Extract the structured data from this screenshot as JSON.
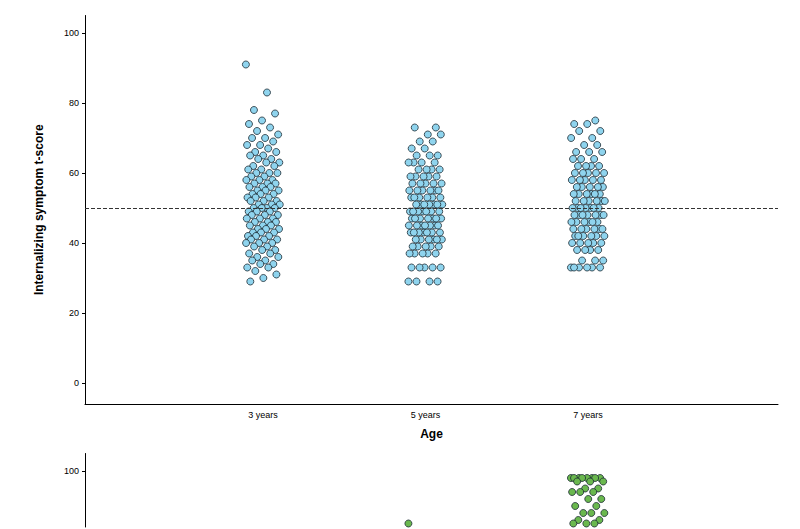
{
  "chart_data": [
    {
      "type": "scatter",
      "x_label": "Age",
      "y_label": "Internalizing symptom t-score",
      "categories": [
        "3 years",
        "5 years",
        "7 years"
      ],
      "values": [
        [
          91,
          83,
          78,
          77,
          75,
          74,
          73,
          72,
          71,
          70,
          70,
          69,
          68,
          68,
          67,
          66,
          66,
          65,
          65,
          64,
          64,
          63,
          63,
          62,
          62,
          61,
          61,
          60,
          60,
          60,
          59,
          59,
          58,
          58,
          58,
          57,
          57,
          57,
          56,
          56,
          56,
          55,
          55,
          55,
          54,
          54,
          54,
          53,
          53,
          53,
          52,
          52,
          52,
          51,
          51,
          51,
          50,
          50,
          50,
          50,
          49,
          49,
          49,
          48,
          48,
          48,
          47,
          47,
          47,
          46,
          46,
          46,
          45,
          45,
          45,
          44,
          44,
          44,
          43,
          43,
          43,
          42,
          42,
          42,
          41,
          41,
          41,
          40,
          40,
          40,
          39,
          39,
          38,
          38,
          37,
          37,
          36,
          36,
          35,
          35,
          34,
          34,
          33,
          33,
          32,
          31,
          30,
          29
        ],
        [
          29,
          29,
          29,
          29,
          33,
          33,
          33,
          33,
          33,
          37,
          37,
          37,
          37,
          37,
          39,
          39,
          39,
          39,
          39,
          41,
          41,
          41,
          41,
          41,
          41,
          43,
          43,
          43,
          43,
          43,
          43,
          43,
          45,
          45,
          45,
          45,
          45,
          45,
          45,
          47,
          47,
          47,
          47,
          47,
          47,
          47,
          49,
          49,
          49,
          49,
          49,
          49,
          49,
          51,
          51,
          51,
          51,
          51,
          51,
          51,
          53,
          53,
          53,
          53,
          53,
          53,
          55,
          55,
          55,
          55,
          55,
          55,
          57,
          57,
          57,
          57,
          57,
          59,
          59,
          59,
          59,
          59,
          61,
          61,
          61,
          61,
          63,
          63,
          63,
          63,
          65,
          65,
          65,
          67,
          67,
          69,
          69,
          71,
          71,
          73,
          73
        ],
        [
          33,
          33,
          33,
          33,
          33,
          33,
          35,
          35,
          35,
          38,
          38,
          38,
          38,
          40,
          40,
          40,
          40,
          40,
          42,
          42,
          42,
          42,
          42,
          42,
          44,
          44,
          44,
          44,
          44,
          44,
          46,
          46,
          46,
          46,
          46,
          46,
          48,
          48,
          48,
          48,
          48,
          48,
          48,
          50,
          50,
          50,
          50,
          50,
          50,
          50,
          52,
          52,
          52,
          52,
          52,
          52,
          54,
          54,
          54,
          54,
          54,
          54,
          56,
          56,
          56,
          56,
          56,
          58,
          58,
          58,
          58,
          58,
          60,
          60,
          60,
          60,
          60,
          62,
          62,
          62,
          62,
          64,
          64,
          64,
          66,
          66,
          66,
          68,
          68,
          70,
          70,
          72,
          72,
          74,
          74,
          75
        ]
      ],
      "color": "#8fd4ee",
      "marker": "circle",
      "ylim": [
        -6,
        105
      ],
      "yticks": [
        0,
        20,
        40,
        60,
        80,
        100
      ],
      "grid": false,
      "reference_line": {
        "value": 50,
        "line_style": "dashed"
      }
    },
    {
      "type": "scatter",
      "categories": [
        null,
        null,
        null
      ],
      "values": [
        [],
        [
          85
        ],
        [
          98,
          98,
          98,
          98,
          98,
          98,
          98,
          98,
          97,
          97,
          97,
          95,
          95,
          94,
          94,
          94,
          92,
          92,
          90,
          90,
          88,
          88,
          88,
          86,
          86,
          85,
          85,
          85
        ]
      ],
      "color": "#6ab84e",
      "marker": "circle",
      "ylim": [
        84,
        105
      ],
      "yticks": [
        100
      ],
      "grid": false,
      "tick_labels": "y"
    }
  ]
}
